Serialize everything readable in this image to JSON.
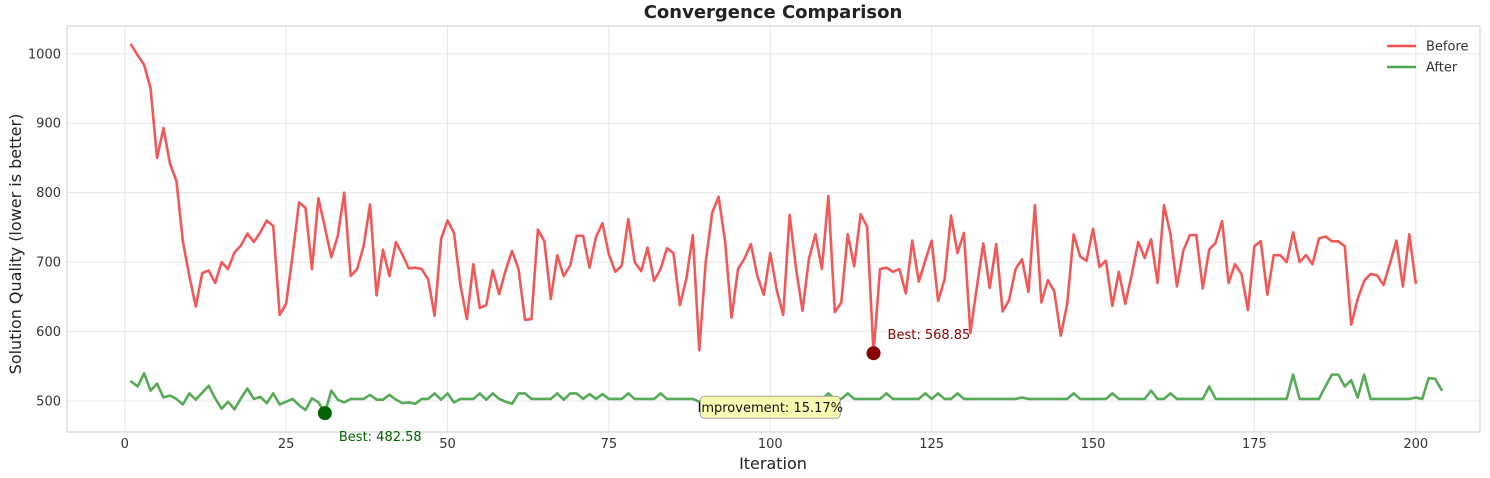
{
  "colors": {
    "before": "#f05050",
    "after": "#4da64d",
    "before_marker": "#8b0000",
    "after_marker": "#006400",
    "improvement_box_fill": "#fbfbb0",
    "improvement_box_stroke": "#9e9e9e"
  },
  "chart_data": {
    "type": "line",
    "title": "Convergence Comparison",
    "xlabel": "Iteration",
    "ylabel": "Solution Quality (lower is better)",
    "xlim": [
      -8.95,
      209.95
    ],
    "ylim": [
      455.4,
      1040
    ],
    "xticks": [
      0,
      25,
      50,
      75,
      100,
      125,
      150,
      175,
      200
    ],
    "yticks": [
      500,
      600,
      700,
      800,
      900,
      1000
    ],
    "grid": true,
    "legend_position": "top-right",
    "series": [
      {
        "name": "Before",
        "color_key": "before",
        "x_start": 1,
        "values": [
          1013,
          998,
          984,
          950,
          850,
          893,
          842,
          817,
          730,
          680,
          636,
          684,
          688,
          670,
          700,
          690,
          714,
          724,
          741,
          729,
          743,
          760,
          752,
          624,
          640,
          710,
          786,
          778,
          690,
          792,
          750,
          707,
          738,
          800,
          680,
          690,
          723,
          783,
          652,
          718,
          680,
          729,
          711,
          691,
          692,
          690,
          675,
          623,
          733,
          760,
          742,
          667,
          618,
          697,
          634,
          638,
          688,
          654,
          688,
          716,
          690,
          617,
          618,
          747,
          730,
          647,
          710,
          680,
          695,
          738,
          738,
          692,
          736,
          756,
          711,
          686,
          695,
          762,
          700,
          687,
          721,
          673,
          690,
          720,
          713,
          638,
          676,
          739,
          573,
          700,
          771,
          794,
          730,
          620,
          690,
          705,
          726,
          680,
          653,
          713,
          660,
          624,
          768,
          690,
          630,
          705,
          740,
          690,
          795,
          628,
          642,
          740,
          694,
          769,
          751,
          569,
          690,
          692,
          686,
          690,
          655,
          731,
          672,
          702,
          731,
          644,
          675,
          767,
          713,
          742,
          598,
          664,
          727,
          663,
          726,
          629,
          645,
          690,
          704,
          657,
          782,
          642,
          674,
          658,
          594,
          640,
          740,
          708,
          702,
          748,
          693,
          702,
          637,
          686,
          640,
          682,
          729,
          706,
          733,
          670,
          782,
          740,
          665,
          717,
          739,
          739,
          662,
          718,
          728,
          759,
          670,
          697,
          683,
          631,
          723,
          730,
          653,
          710,
          710,
          700,
          743,
          700,
          710,
          697,
          734,
          737,
          730,
          730,
          723,
          610,
          647,
          673,
          683,
          681,
          667,
          698,
          731,
          665,
          740,
          670
        ]
      },
      {
        "name": "After",
        "color_key": "after",
        "x_start": 1,
        "values": [
          528,
          521,
          540,
          515,
          525,
          505,
          508,
          503,
          495,
          511,
          502,
          512,
          522,
          504,
          489,
          499,
          488,
          504,
          518,
          503,
          506,
          497,
          511,
          495,
          499,
          503,
          494,
          487,
          504,
          498,
          483,
          515,
          502,
          498,
          503,
          503,
          503,
          509,
          502,
          502,
          509,
          502,
          497,
          498,
          496,
          503,
          503,
          511,
          502,
          511,
          498,
          503,
          503,
          503,
          511,
          502,
          511,
          503,
          499,
          496,
          511,
          511,
          503,
          503,
          503,
          503,
          511,
          502,
          511,
          511,
          503,
          510,
          503,
          510,
          503,
          503,
          503,
          511,
          503,
          503,
          503,
          503,
          511,
          503,
          503,
          503,
          503,
          503,
          499,
          503,
          503,
          503,
          503,
          503,
          503,
          503,
          503,
          503,
          503,
          503,
          503,
          503,
          503,
          503,
          503,
          503,
          503,
          503,
          511,
          503,
          503,
          511,
          503,
          503,
          503,
          503,
          503,
          511,
          503,
          503,
          503,
          503,
          503,
          511,
          503,
          511,
          503,
          503,
          511,
          503,
          503,
          503,
          503,
          503,
          503,
          503,
          503,
          503,
          505,
          503,
          503,
          503,
          503,
          503,
          503,
          503,
          511,
          503,
          503,
          503,
          503,
          503,
          511,
          503,
          503,
          503,
          503,
          503,
          515,
          503,
          503,
          511,
          503,
          503,
          503,
          503,
          503,
          521,
          503,
          503,
          503,
          503,
          503,
          503,
          503,
          503,
          503,
          503,
          503,
          503,
          538,
          503,
          503,
          503,
          503,
          521,
          538,
          538,
          521,
          530,
          505,
          538,
          503,
          503,
          503,
          503,
          503,
          503,
          503,
          505,
          503,
          533,
          532,
          516
        ]
      }
    ],
    "annotations": [
      {
        "label": "Best: 568.85",
        "x": 116,
        "y": 568.85,
        "color_key": "before_marker"
      },
      {
        "label": "Best: 482.58",
        "x": 31,
        "y": 482.58,
        "color_key": "after_marker"
      },
      {
        "label": "Improvement: 15.17%",
        "x": 100,
        "y": 491
      }
    ]
  }
}
